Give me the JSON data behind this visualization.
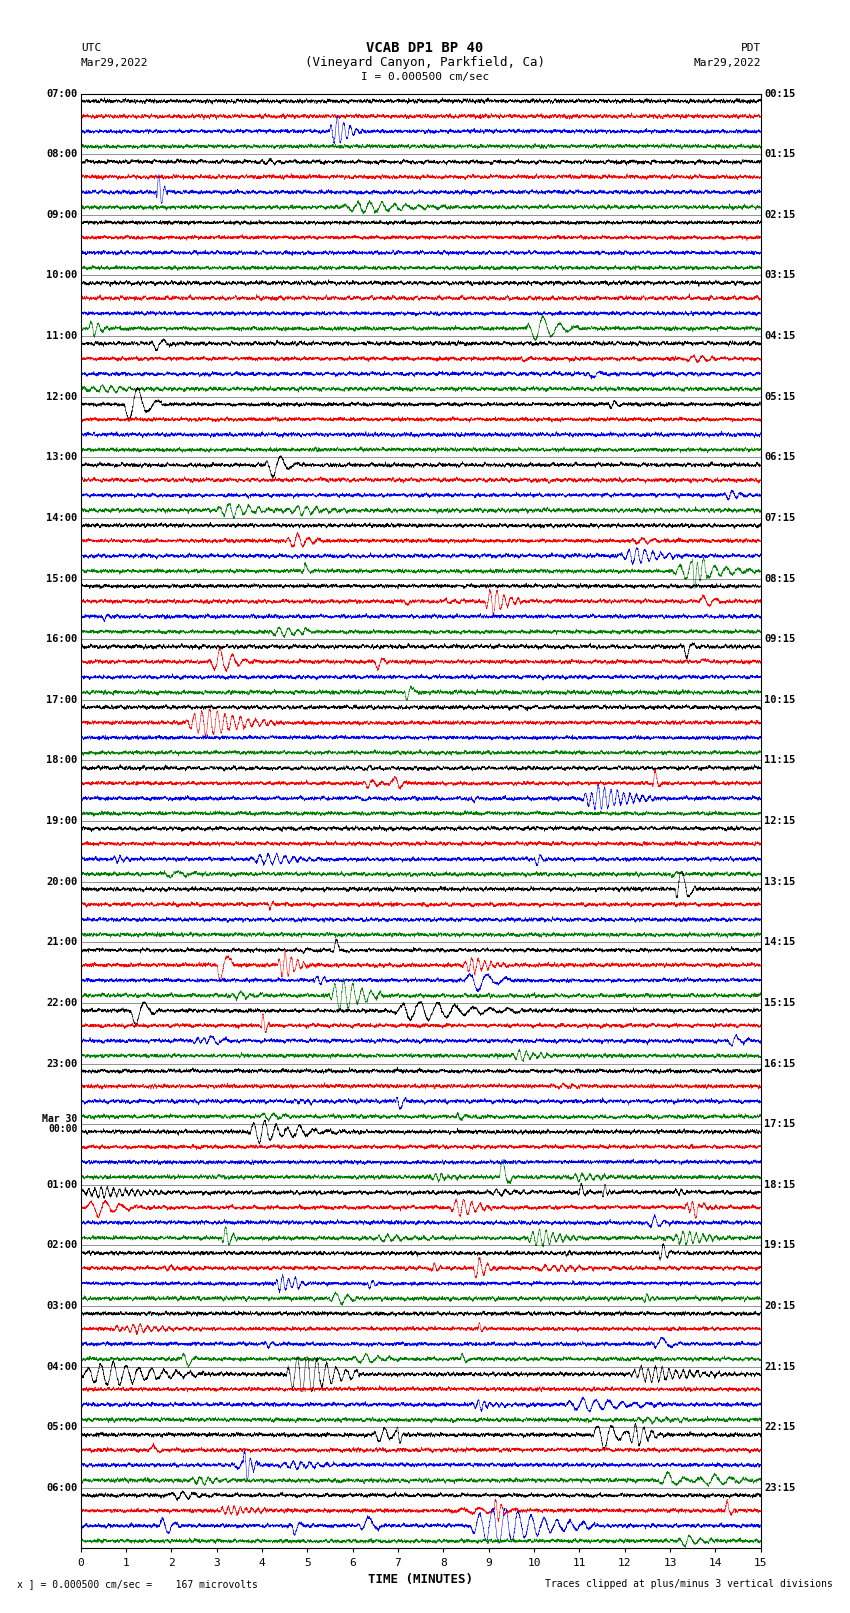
{
  "title_line1": "VCAB DP1 BP 40",
  "title_line2": "(Vineyard Canyon, Parkfield, Ca)",
  "title_line3": "I = 0.000500 cm/sec",
  "left_header_line1": "UTC",
  "left_header_line2": "Mar29,2022",
  "right_header_line1": "PDT",
  "right_header_line2": "Mar29,2022",
  "xlabel": "TIME (MINUTES)",
  "footer_left": "x ] = 0.000500 cm/sec =    167 microvolts",
  "footer_right": "Traces clipped at plus/minus 3 vertical divisions",
  "xlim": [
    0,
    15
  ],
  "xticks": [
    0,
    1,
    2,
    3,
    4,
    5,
    6,
    7,
    8,
    9,
    10,
    11,
    12,
    13,
    14,
    15
  ],
  "colors": [
    "black",
    "red",
    "blue",
    "green"
  ],
  "background_color": "white",
  "plot_bg_color": "white",
  "n_rows": 96,
  "utc_labels": [
    "07:00",
    "",
    "",
    "",
    "08:00",
    "",
    "",
    "",
    "09:00",
    "",
    "",
    "",
    "10:00",
    "",
    "",
    "",
    "11:00",
    "",
    "",
    "",
    "12:00",
    "",
    "",
    "",
    "13:00",
    "",
    "",
    "",
    "14:00",
    "",
    "",
    "",
    "15:00",
    "",
    "",
    "",
    "16:00",
    "",
    "",
    "",
    "17:00",
    "",
    "",
    "",
    "18:00",
    "",
    "",
    "",
    "19:00",
    "",
    "",
    "",
    "20:00",
    "",
    "",
    "",
    "21:00",
    "",
    "",
    "",
    "22:00",
    "",
    "",
    "",
    "23:00",
    "",
    "",
    "",
    "Mar 30\n00:00",
    "",
    "",
    "",
    "01:00",
    "",
    "",
    "",
    "02:00",
    "",
    "",
    "",
    "03:00",
    "",
    "",
    "",
    "04:00",
    "",
    "",
    "",
    "05:00",
    "",
    "",
    "",
    "06:00",
    "",
    "",
    ""
  ],
  "pdt_labels": [
    "00:15",
    "",
    "",
    "",
    "01:15",
    "",
    "",
    "",
    "02:15",
    "",
    "",
    "",
    "03:15",
    "",
    "",
    "",
    "04:15",
    "",
    "",
    "",
    "05:15",
    "",
    "",
    "",
    "06:15",
    "",
    "",
    "",
    "07:15",
    "",
    "",
    "",
    "08:15",
    "",
    "",
    "",
    "09:15",
    "",
    "",
    "",
    "10:15",
    "",
    "",
    "",
    "11:15",
    "",
    "",
    "",
    "12:15",
    "",
    "",
    "",
    "13:15",
    "",
    "",
    "",
    "14:15",
    "",
    "",
    "",
    "15:15",
    "",
    "",
    "",
    "16:15",
    "",
    "",
    "",
    "17:15",
    "",
    "",
    "",
    "18:15",
    "",
    "",
    "",
    "19:15",
    "",
    "",
    "",
    "20:15",
    "",
    "",
    "",
    "21:15",
    "",
    "",
    "",
    "22:15",
    "",
    "",
    "",
    "23:15",
    "",
    "",
    ""
  ]
}
